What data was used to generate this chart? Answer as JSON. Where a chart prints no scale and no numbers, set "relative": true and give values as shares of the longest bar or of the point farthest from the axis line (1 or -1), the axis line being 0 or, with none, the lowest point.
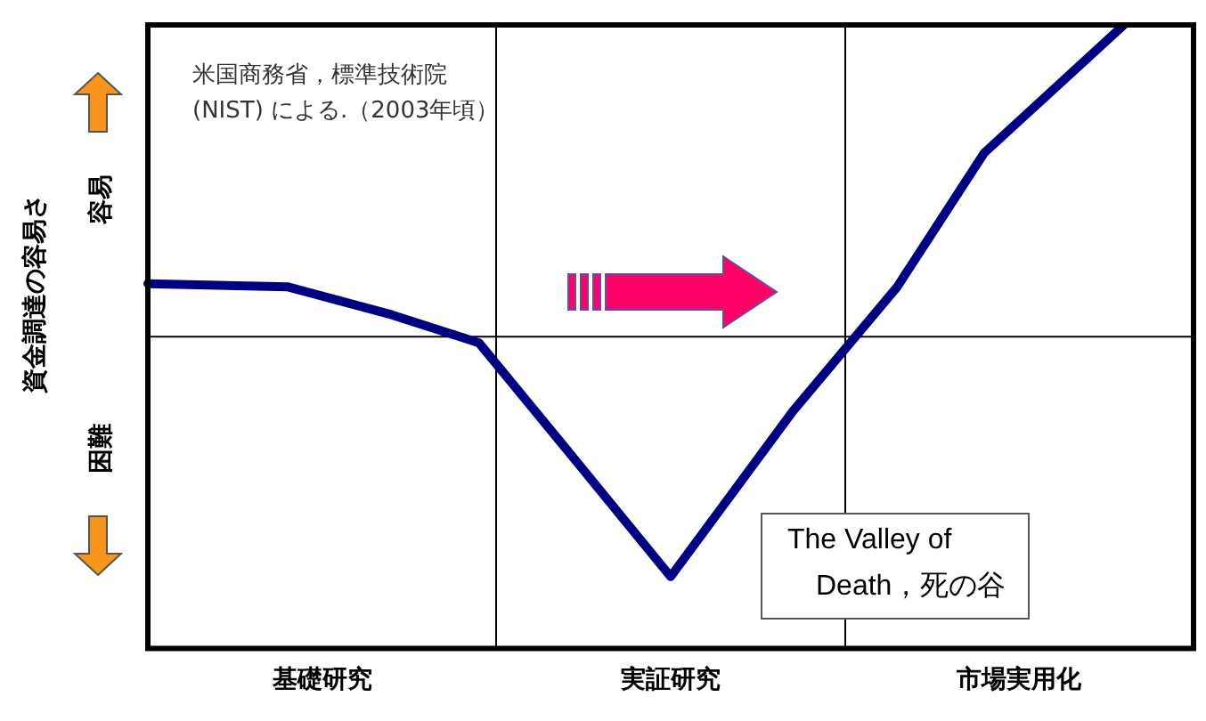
{
  "chart_data": {
    "type": "line",
    "relative": true,
    "categories": [
      null,
      null,
      null,
      null,
      null,
      null,
      null,
      null,
      null,
      null,
      "基礎研究",
      null,
      null,
      null,
      null,
      null,
      null,
      null,
      null,
      null,
      null,
      null,
      null,
      null,
      null,
      null,
      null,
      null,
      null,
      null,
      "実証研究",
      null,
      null,
      null,
      null,
      null,
      null,
      null,
      null,
      null,
      null,
      null,
      null,
      null,
      null,
      null,
      null,
      null,
      null,
      null,
      "市場実用化",
      null,
      null,
      null,
      null,
      null,
      null,
      null,
      null,
      null,
      null
    ],
    "series": [
      {
        "color": "#000080",
        "values": [
          0.17,
          null,
          null,
          null,
          null,
          null,
          null,
          null,
          0.16,
          null,
          null,
          null,
          null,
          null,
          0.07,
          null,
          null,
          null,
          null,
          -0.02,
          null,
          null,
          null,
          null,
          -0.36,
          null,
          null,
          null,
          null,
          null,
          -0.77,
          null,
          null,
          null,
          null,
          null,
          null,
          -0.24,
          null,
          null,
          null,
          null,
          null,
          0.16,
          null,
          null,
          null,
          null,
          0.59,
          null,
          null,
          null,
          null,
          null,
          null,
          null,
          1,
          null,
          null,
          null,
          null
        ]
      }
    ],
    "ylabel": "資金調達の容易さ",
    "ref_lines": [
      {
        "axis": "y",
        "value": 0,
        "color": "#000000"
      }
    ],
    "annotations": [
      "米国商務省，標準技術院\n(NIST) による.（2003年頃）",
      "The Valley of\n　Death，死の谷",
      "容易",
      "困難"
    ],
    "grid": "x",
    "legend": false,
    "marker": "none",
    "line_style": "solid"
  }
}
